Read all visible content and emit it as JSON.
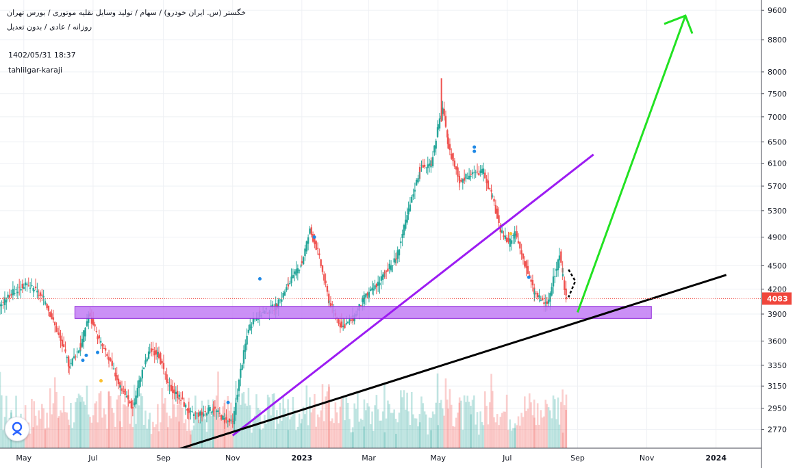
{
  "header": {
    "symbol_line": "خگستر (س. ایران خودرو) / سهام / تولید وسایل نقلیه موتوری / بورس تهران",
    "settings_line": "روزانه / عادی / بدون تعدیل",
    "datetime": "1402/05/31 18:37",
    "author": "tahlilgar-karaji"
  },
  "colors": {
    "up": "#26a69a",
    "down": "#ef5350",
    "purple_line": "#9c1cf2",
    "zone_fill": "#c27cf4",
    "zone_border": "#8e24d8",
    "trend_line": "#000000",
    "arrow": "#22e222",
    "price_label": "#f0463c",
    "grid": "#eef0f4"
  },
  "chart_data": {
    "type": "candlestick",
    "title": "",
    "price_scale": "log",
    "last_price": "4083",
    "y_ticks": [
      2770,
      2950,
      3150,
      3350,
      3600,
      3900,
      4200,
      4500,
      4900,
      5300,
      5700,
      6100,
      6500,
      7000,
      7500,
      8000,
      8800,
      9600
    ],
    "ylim": [
      2620,
      9900
    ],
    "x_ticks": [
      {
        "label": "May",
        "date": "2022-05-01"
      },
      {
        "label": "Jul",
        "date": "2022-07-01"
      },
      {
        "label": "Sep",
        "date": "2022-09-01"
      },
      {
        "label": "Nov",
        "date": "2022-11-01"
      },
      {
        "label": "2023",
        "date": "2023-01-01"
      },
      {
        "label": "Mar",
        "date": "2023-03-01"
      },
      {
        "label": "May",
        "date": "2023-05-01"
      },
      {
        "label": "Jul",
        "date": "2023-07-01"
      },
      {
        "label": "Sep",
        "date": "2023-09-01"
      },
      {
        "label": "Nov",
        "date": "2023-11-01"
      },
      {
        "label": "2024",
        "date": "2024-01-01"
      }
    ],
    "xlim": [
      "2022-04-10",
      "2024-02-10"
    ],
    "price_path": [
      [
        "2022-04-10",
        4000
      ],
      [
        "2022-04-20",
        4150
      ],
      [
        "2022-05-01",
        4250
      ],
      [
        "2022-05-10",
        4200
      ],
      [
        "2022-05-20",
        4050
      ],
      [
        "2022-06-01",
        3650
      ],
      [
        "2022-06-10",
        3350
      ],
      [
        "2022-06-20",
        3550
      ],
      [
        "2022-06-27",
        3900
      ],
      [
        "2022-07-05",
        3650
      ],
      [
        "2022-07-15",
        3400
      ],
      [
        "2022-07-25",
        3150
      ],
      [
        "2022-08-05",
        2950
      ],
      [
        "2022-08-12",
        3250
      ],
      [
        "2022-08-20",
        3500
      ],
      [
        "2022-08-28",
        3450
      ],
      [
        "2022-09-05",
        3150
      ],
      [
        "2022-09-15",
        3050
      ],
      [
        "2022-09-25",
        2900
      ],
      [
        "2022-10-05",
        2900
      ],
      [
        "2022-10-15",
        2950
      ],
      [
        "2022-10-25",
        2850
      ],
      [
        "2022-11-01",
        2820
      ],
      [
        "2022-11-08",
        3300
      ],
      [
        "2022-11-15",
        3750
      ],
      [
        "2022-11-25",
        3900
      ],
      [
        "2022-12-10",
        4000
      ],
      [
        "2022-12-20",
        4250
      ],
      [
        "2023-01-01",
        4550
      ],
      [
        "2023-01-08",
        5000
      ],
      [
        "2023-01-15",
        4700
      ],
      [
        "2023-01-25",
        4050
      ],
      [
        "2023-02-05",
        3750
      ],
      [
        "2023-02-15",
        3850
      ],
      [
        "2023-02-25",
        4100
      ],
      [
        "2023-03-05",
        4200
      ],
      [
        "2023-03-15",
        4400
      ],
      [
        "2023-03-25",
        4600
      ],
      [
        "2023-04-05",
        5300
      ],
      [
        "2023-04-15",
        6000
      ],
      [
        "2023-04-25",
        6100
      ],
      [
        "2023-05-01",
        6800
      ],
      [
        "2023-05-05",
        7200
      ],
      [
        "2023-05-10",
        6400
      ],
      [
        "2023-05-20",
        5800
      ],
      [
        "2023-05-30",
        5900
      ],
      [
        "2023-06-10",
        5950
      ],
      [
        "2023-06-18",
        5500
      ],
      [
        "2023-06-25",
        5000
      ],
      [
        "2023-07-02",
        4800
      ],
      [
        "2023-07-08",
        4950
      ],
      [
        "2023-07-15",
        4600
      ],
      [
        "2023-07-25",
        4150
      ],
      [
        "2023-08-05",
        4000
      ],
      [
        "2023-08-12",
        4400
      ],
      [
        "2023-08-16",
        4650
      ],
      [
        "2023-08-19",
        4350
      ],
      [
        "2023-08-22",
        4083
      ]
    ],
    "extremes": {
      "peak": {
        "date": "2023-05-04",
        "price": 7850
      },
      "low": {
        "date": "2022-11-01",
        "price": 2700
      }
    },
    "drawings": {
      "zone": {
        "from": "2022-06-15",
        "to": "2023-11-05",
        "low": 3850,
        "high": 3990
      },
      "purple_trendline": {
        "from": [
          "2022-11-01",
          2720
        ],
        "to": [
          "2023-09-15",
          6260
        ]
      },
      "black_trendline": {
        "from": [
          "2022-09-10",
          2600
        ],
        "to": [
          "2024-01-10",
          4380
        ]
      },
      "green_arrow": {
        "from": [
          "2023-09-01",
          3920
        ],
        "to": [
          "2023-12-05",
          9450
        ]
      },
      "dashed_triangle": {
        "tip": [
          "2023-08-30",
          4300
        ],
        "start": [
          "2023-08-24",
          4450
        ],
        "end": [
          "2023-08-24",
          4100
        ]
      }
    }
  }
}
